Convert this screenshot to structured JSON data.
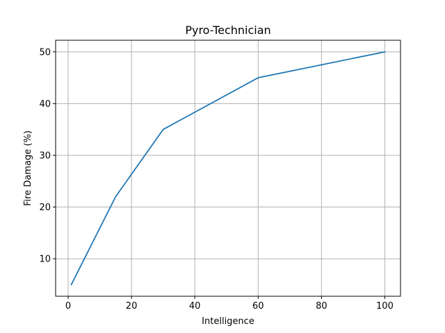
{
  "chart_data": {
    "type": "line",
    "title": "Pyro-Technician",
    "xlabel": "Intelligence",
    "ylabel": "Fire Damage (%)",
    "xlim": [
      -3.95,
      104.95
    ],
    "ylim": [
      2.75,
      52.25
    ],
    "xticks": [
      0,
      20,
      40,
      60,
      80,
      100
    ],
    "yticks": [
      10,
      20,
      30,
      40,
      50
    ],
    "grid": true,
    "series": [
      {
        "color": "#1f77b4",
        "x": [
          1,
          15,
          30,
          60,
          100
        ],
        "y": [
          5,
          22,
          35,
          45,
          50
        ]
      }
    ]
  }
}
